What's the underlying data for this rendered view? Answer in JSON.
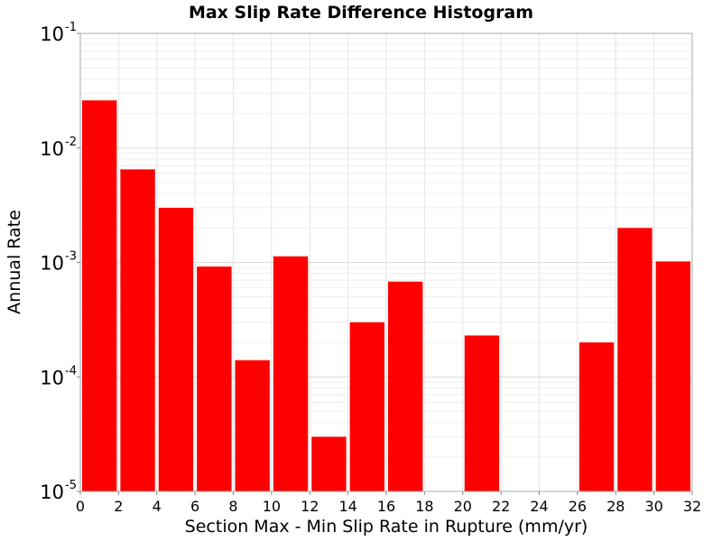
{
  "chart_data": {
    "type": "bar",
    "title": "Max Slip Rate Difference Histogram",
    "xlabel": "Section Max - Min Slip Rate in Rupture (mm/yr)",
    "ylabel": "Annual Rate",
    "xlim": [
      0,
      32
    ],
    "ylim": [
      1e-05,
      0.1
    ],
    "yscale": "log",
    "grid": true,
    "bar_color": "#ff0000",
    "bin_width": 2,
    "x_ticks": [
      0,
      2,
      4,
      6,
      8,
      10,
      12,
      14,
      16,
      18,
      20,
      22,
      24,
      26,
      28,
      30,
      32
    ],
    "x_tick_labels": [
      "0",
      "2",
      "4",
      "6",
      "8",
      "10",
      "12",
      "14",
      "16",
      "18",
      "20",
      "22",
      "24",
      "26",
      "28",
      "30",
      "32"
    ],
    "y_ticks": [
      {
        "value": 1e-05,
        "base": "10",
        "exp": "-5"
      },
      {
        "value": 0.0001,
        "base": "10",
        "exp": "-4"
      },
      {
        "value": 0.001,
        "base": "10",
        "exp": "-3"
      },
      {
        "value": 0.01,
        "base": "10",
        "exp": "-2"
      },
      {
        "value": 0.1,
        "base": "10",
        "exp": "-1"
      }
    ],
    "bars": [
      {
        "x": 1,
        "value": 0.026
      },
      {
        "x": 3,
        "value": 0.0065
      },
      {
        "x": 5,
        "value": 0.003
      },
      {
        "x": 7,
        "value": 0.00092
      },
      {
        "x": 9,
        "value": 0.00014
      },
      {
        "x": 11,
        "value": 0.00113
      },
      {
        "x": 13,
        "value": 3e-05
      },
      {
        "x": 15,
        "value": 0.0003
      },
      {
        "x": 17,
        "value": 0.00068
      },
      {
        "x": 21,
        "value": 0.00023
      },
      {
        "x": 27,
        "value": 0.0002
      },
      {
        "x": 29,
        "value": 0.002
      },
      {
        "x": 31,
        "value": 0.00102
      }
    ]
  }
}
